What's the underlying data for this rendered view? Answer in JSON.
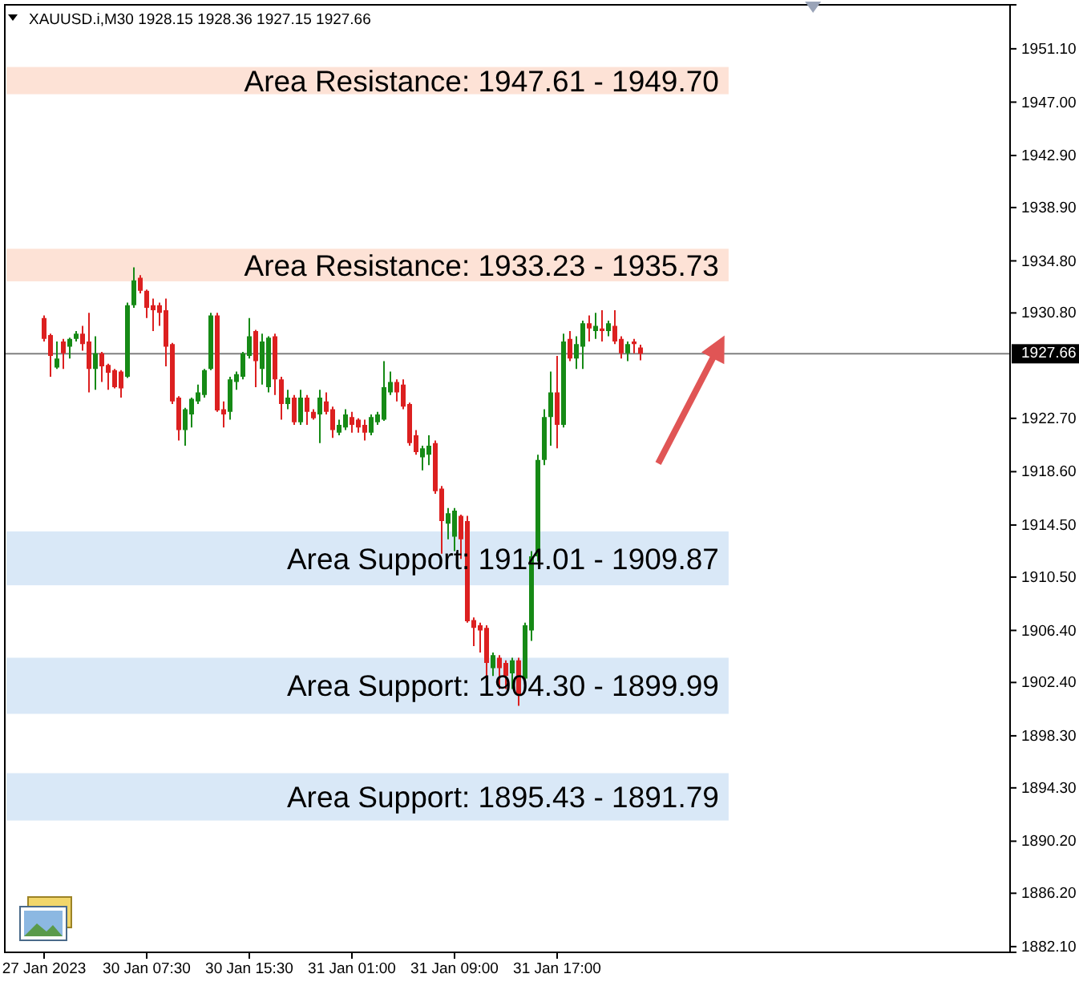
{
  "chart_data": {
    "type": "candlestick",
    "title": "XAUUSD.i,M30 1928.15 1928.36 1927.15 1927.66",
    "categories": [
      "27 Jan 2023",
      null,
      null,
      null,
      null,
      null,
      null,
      null,
      null,
      null,
      null,
      null,
      null,
      null,
      null,
      null,
      "30 Jan 07:30",
      null,
      null,
      null,
      null,
      null,
      null,
      null,
      null,
      null,
      null,
      null,
      null,
      null,
      null,
      null,
      "30 Jan 15:30",
      null,
      null,
      null,
      null,
      null,
      null,
      null,
      null,
      null,
      null,
      null,
      null,
      null,
      null,
      null,
      "31 Jan 01:00",
      null,
      null,
      null,
      null,
      null,
      null,
      null,
      null,
      null,
      null,
      null,
      null,
      null,
      null,
      null,
      "31 Jan 09:00",
      null,
      null,
      null,
      null,
      null,
      null,
      null,
      null,
      null,
      null,
      null,
      null,
      null,
      null,
      null,
      "31 Jan 17:00",
      null,
      null,
      null,
      null,
      null,
      null,
      null,
      null,
      null,
      null,
      null,
      null,
      null,
      null,
      null,
      null,
      null,
      null,
      null,
      null,
      null,
      null,
      null,
      null,
      null,
      null,
      null,
      null,
      null,
      null,
      null,
      null,
      null,
      null,
      null,
      null,
      null,
      null,
      null,
      null,
      null,
      null,
      null,
      null,
      null,
      null,
      null,
      null,
      null,
      null,
      null,
      null,
      null,
      null,
      null,
      null,
      null,
      null,
      null,
      null,
      null,
      null,
      null,
      null,
      null,
      null,
      null,
      null,
      null,
      null
    ],
    "ohlc": [
      [
        1930.4,
        1930.6,
        1928.6,
        1928.8
      ],
      [
        1929.1,
        1929.2,
        1925.9,
        1927.5
      ],
      [
        1926.6,
        1928.6,
        1926.5,
        1927.3
      ],
      [
        1928.6,
        1928.8,
        1926.5,
        1927.7
      ],
      [
        1928.2,
        1928.9,
        1927.3,
        1928.8
      ],
      [
        1928.8,
        1929.4,
        1928.6,
        1929.2
      ],
      [
        1929.2,
        1929.8,
        1927.9,
        1928.4
      ],
      [
        1928.6,
        1930.8,
        1924.7,
        1926.5
      ],
      [
        1926.5,
        1929.0,
        1924.9,
        1927.7
      ],
      [
        1927.7,
        1927.8,
        1925.5,
        1926.7
      ],
      [
        1926.8,
        1926.9,
        1924.9,
        1926.2
      ],
      [
        1926.4,
        1926.5,
        1925.0,
        1925.1
      ],
      [
        1926.3,
        1926.4,
        1924.3,
        1925.0
      ],
      [
        1925.9,
        1931.6,
        1925.8,
        1931.4
      ],
      [
        1931.4,
        1934.3,
        1931.2,
        1933.3
      ],
      [
        1933.5,
        1933.7,
        1932.3,
        1932.5
      ],
      [
        1932.5,
        1932.6,
        1930.4,
        1931.2
      ],
      [
        1931.4,
        1931.9,
        1929.4,
        1931.0
      ],
      [
        1931.4,
        1931.6,
        1929.8,
        1930.8
      ],
      [
        1931.0,
        1931.9,
        1926.7,
        1928.2
      ],
      [
        1928.4,
        1928.5,
        1923.8,
        1924.0
      ],
      [
        1924.3,
        1924.4,
        1921.0,
        1921.8
      ],
      [
        1921.8,
        1923.5,
        1920.6,
        1923.4
      ],
      [
        1923.0,
        1924.3,
        1922.0,
        1924.2
      ],
      [
        1924.0,
        1925.3,
        1923.8,
        1924.7
      ],
      [
        1924.5,
        1926.5,
        1924.3,
        1926.4
      ],
      [
        1926.5,
        1930.8,
        1926.4,
        1930.6
      ],
      [
        1930.6,
        1930.8,
        1923.2,
        1923.3
      ],
      [
        1923.4,
        1924.0,
        1922.0,
        1923.0
      ],
      [
        1923.2,
        1925.9,
        1922.6,
        1925.7
      ],
      [
        1925.5,
        1926.3,
        1924.9,
        1926.1
      ],
      [
        1925.9,
        1927.8,
        1925.7,
        1927.7
      ],
      [
        1927.5,
        1930.4,
        1927.3,
        1929.0
      ],
      [
        1929.4,
        1929.5,
        1925.1,
        1927.1
      ],
      [
        1926.5,
        1929.2,
        1925.3,
        1928.6
      ],
      [
        1925.1,
        1929.0,
        1924.7,
        1928.9
      ],
      [
        1929.0,
        1929.2,
        1924.5,
        1925.7
      ],
      [
        1925.7,
        1925.9,
        1922.6,
        1923.8
      ],
      [
        1923.8,
        1924.9,
        1923.4,
        1924.3
      ],
      [
        1924.3,
        1924.5,
        1922.2,
        1922.4
      ],
      [
        1922.4,
        1924.9,
        1922.2,
        1924.3
      ],
      [
        1924.3,
        1924.5,
        1922.2,
        1923.2
      ],
      [
        1923.2,
        1923.4,
        1922.6,
        1922.7
      ],
      [
        1923.0,
        1924.9,
        1920.8,
        1924.3
      ],
      [
        1924.0,
        1924.7,
        1923.0,
        1923.2
      ],
      [
        1923.4,
        1923.6,
        1921.2,
        1921.8
      ],
      [
        1921.6,
        1922.6,
        1921.4,
        1922.2
      ],
      [
        1922.0,
        1923.4,
        1921.8,
        1923.0
      ],
      [
        1922.8,
        1923.2,
        1921.6,
        1922.2
      ],
      [
        1922.6,
        1922.7,
        1921.6,
        1922.0
      ],
      [
        1922.2,
        1922.6,
        1921.0,
        1921.6
      ],
      [
        1921.6,
        1923.0,
        1921.4,
        1922.8
      ],
      [
        1922.4,
        1923.2,
        1922.2,
        1923.0
      ],
      [
        1922.6,
        1927.1,
        1922.5,
        1925.1
      ],
      [
        1924.7,
        1926.3,
        1924.5,
        1925.5
      ],
      [
        1925.5,
        1925.7,
        1924.0,
        1924.7
      ],
      [
        1925.3,
        1925.7,
        1923.4,
        1923.6
      ],
      [
        1923.8,
        1923.9,
        1920.6,
        1920.8
      ],
      [
        1921.4,
        1921.8,
        1919.9,
        1920.1
      ],
      [
        1919.7,
        1920.6,
        1918.7,
        1920.4
      ],
      [
        1919.9,
        1921.4,
        1919.1,
        1920.6
      ],
      [
        1920.8,
        1921.0,
        1916.9,
        1917.1
      ],
      [
        1917.3,
        1917.5,
        1912.3,
        1914.8
      ],
      [
        1914.6,
        1915.8,
        1913.4,
        1915.4
      ],
      [
        1913.6,
        1915.8,
        1912.5,
        1915.6
      ],
      [
        1915.2,
        1915.3,
        1911.9,
        1913.4
      ],
      [
        1914.8,
        1915.2,
        1907.0,
        1907.1
      ],
      [
        1907.2,
        1907.4,
        1905.2,
        1906.6
      ],
      [
        1906.8,
        1907.0,
        1904.7,
        1906.4
      ],
      [
        1906.6,
        1906.8,
        1902.9,
        1903.9
      ],
      [
        1903.5,
        1904.7,
        1902.9,
        1904.5
      ],
      [
        1904.3,
        1904.5,
        1901.9,
        1903.5
      ],
      [
        1903.9,
        1904.1,
        1901.9,
        1902.9
      ],
      [
        1903.1,
        1904.3,
        1901.9,
        1904.1
      ],
      [
        1904.1,
        1904.3,
        1900.6,
        1901.5
      ],
      [
        1902.7,
        1907.0,
        1902.3,
        1906.8
      ],
      [
        1906.4,
        1912.5,
        1905.6,
        1912.1
      ],
      [
        1912.1,
        1919.9,
        1911.7,
        1919.5
      ],
      [
        1919.5,
        1923.4,
        1919.1,
        1922.8
      ],
      [
        1922.8,
        1926.3,
        1920.6,
        1924.7
      ],
      [
        1924.7,
        1927.5,
        1920.4,
        1922.2
      ],
      [
        1922.2,
        1929.2,
        1922.0,
        1928.6
      ],
      [
        1928.8,
        1929.4,
        1927.1,
        1927.3
      ],
      [
        1927.3,
        1929.0,
        1926.5,
        1928.4
      ],
      [
        1928.2,
        1930.2,
        1926.5,
        1930.0
      ],
      [
        1930.0,
        1930.6,
        1928.6,
        1929.6
      ],
      [
        1929.4,
        1930.8,
        1928.8,
        1929.8
      ],
      [
        1929.6,
        1931.0,
        1928.6,
        1929.4
      ],
      [
        1929.4,
        1930.2,
        1929.0,
        1930.0
      ],
      [
        1929.8,
        1931.0,
        1928.4,
        1928.6
      ],
      [
        1928.8,
        1929.0,
        1927.3,
        1927.7
      ],
      [
        1927.7,
        1928.6,
        1927.1,
        1928.4
      ],
      [
        1928.6,
        1928.8,
        1927.7,
        1928.4
      ],
      [
        1928.15,
        1928.36,
        1927.15,
        1927.66
      ],
      null,
      null,
      null,
      null,
      null,
      null,
      null,
      null,
      null,
      null,
      null,
      null,
      null,
      null,
      null,
      null,
      null,
      null,
      null,
      null,
      null,
      null,
      null,
      null,
      null,
      null,
      null,
      null,
      null,
      null,
      null,
      null,
      null,
      null,
      null,
      null,
      null,
      null,
      null,
      null,
      null,
      null,
      null,
      null,
      null,
      null,
      null,
      null,
      null,
      null,
      null,
      null,
      null,
      null,
      null,
      null,
      null
    ],
    "colors": [
      "#dc2020",
      "#dc2020",
      "#168a16",
      "#dc2020",
      "#168a16",
      "#168a16",
      "#dc2020",
      "#dc2020",
      "#168a16",
      "#dc2020",
      "#dc2020",
      "#dc2020",
      "#dc2020",
      "#168a16",
      "#168a16",
      "#dc2020",
      "#dc2020",
      "#dc2020",
      "#dc2020",
      "#dc2020",
      "#dc2020",
      "#dc2020",
      "#168a16",
      "#168a16",
      "#168a16",
      "#168a16",
      "#168a16",
      "#dc2020",
      "#dc2020",
      "#168a16",
      "#168a16",
      "#168a16",
      "#168a16",
      "#dc2020",
      "#168a16",
      "#168a16",
      "#dc2020",
      "#dc2020",
      "#168a16",
      "#dc2020",
      "#168a16",
      "#dc2020",
      "#dc2020",
      "#168a16",
      "#dc2020",
      "#dc2020",
      "#168a16",
      "#168a16",
      "#dc2020",
      "#dc2020",
      "#dc2020",
      "#168a16",
      "#168a16",
      "#168a16",
      "#168a16",
      "#dc2020",
      "#dc2020",
      "#dc2020",
      "#dc2020",
      "#168a16",
      "#168a16",
      "#dc2020",
      "#dc2020",
      "#168a16",
      "#168a16",
      "#dc2020",
      "#dc2020",
      "#dc2020",
      "#dc2020",
      "#dc2020",
      "#168a16",
      "#dc2020",
      "#dc2020",
      "#168a16",
      "#dc2020",
      "#168a16",
      "#168a16",
      "#168a16",
      "#168a16",
      "#168a16",
      "#dc2020",
      "#168a16",
      "#dc2020",
      "#168a16",
      "#168a16",
      "#dc2020",
      "#168a16",
      "#dc2020",
      "#168a16",
      "#dc2020",
      "#dc2020",
      "#168a16",
      "#dc2020",
      "#dc2020",
      null,
      null,
      null,
      null,
      null,
      null,
      null,
      null,
      null,
      null,
      null,
      null,
      null,
      null,
      null,
      null,
      null,
      null,
      null,
      null,
      null,
      null,
      null,
      null,
      null,
      null,
      null,
      null,
      null,
      null,
      null,
      null,
      null,
      null,
      null,
      null,
      null,
      null,
      null,
      null,
      null,
      null,
      null,
      null,
      null,
      null,
      null,
      null,
      null,
      null,
      null,
      null,
      null,
      null,
      null,
      null,
      null
    ],
    "ylim": [
      1881.66,
      1954.48
    ],
    "yticks": [
      {
        "value": 1951.1,
        "label": "1951.10"
      },
      {
        "value": 1947,
        "label": "1947.00"
      },
      {
        "value": 1942.9,
        "label": "1942.90"
      },
      {
        "value": 1938.9,
        "label": "1938.90"
      },
      {
        "value": 1934.8,
        "label": "1934.80"
      },
      {
        "value": 1930.8,
        "label": "1930.80"
      },
      {
        "value": 1922.7,
        "label": "1922.70"
      },
      {
        "value": 1918.6,
        "label": "1918.60"
      },
      {
        "value": 1914.5,
        "label": "1914.50"
      },
      {
        "value": 1910.5,
        "label": "1910.50"
      },
      {
        "value": 1906.4,
        "label": "1906.40"
      },
      {
        "value": 1902.4,
        "label": "1902.40"
      },
      {
        "value": 1898.3,
        "label": "1898.30"
      },
      {
        "value": 1894.3,
        "label": "1894.30"
      },
      {
        "value": 1890.2,
        "label": "1890.20"
      },
      {
        "value": 1886.2,
        "label": "1886.20"
      },
      {
        "value": 1882.1,
        "label": "1882.10"
      }
    ],
    "ref_lines": [
      {
        "axis": "y",
        "value": 1927.66,
        "label": "1927.66",
        "color": "#808080"
      }
    ],
    "bands": [
      {
        "axis": "y",
        "from": 1947.61,
        "to": 1949.7,
        "label": "Area Resistance: 1947.61 - 1949.70",
        "color": "#fde2d6"
      },
      {
        "axis": "y",
        "from": 1933.23,
        "to": 1935.73,
        "label": "Area Resistance: 1933.23 - 1935.73",
        "color": "#fde2d6"
      },
      {
        "axis": "y",
        "from": 1914.01,
        "to": 1909.87,
        "label": "Area Support: 1914.01 - 1909.87",
        "color": "#d9e8f7"
      },
      {
        "axis": "y",
        "from": 1904.3,
        "to": 1899.99,
        "label": "Area Support: 1904.30 - 1899.99",
        "color": "#d9e8f7"
      },
      {
        "axis": "y",
        "from": 1895.43,
        "to": 1891.79,
        "label": "Area Support: 1895.43 - 1891.79",
        "color": "#d9e8f7"
      }
    ]
  }
}
